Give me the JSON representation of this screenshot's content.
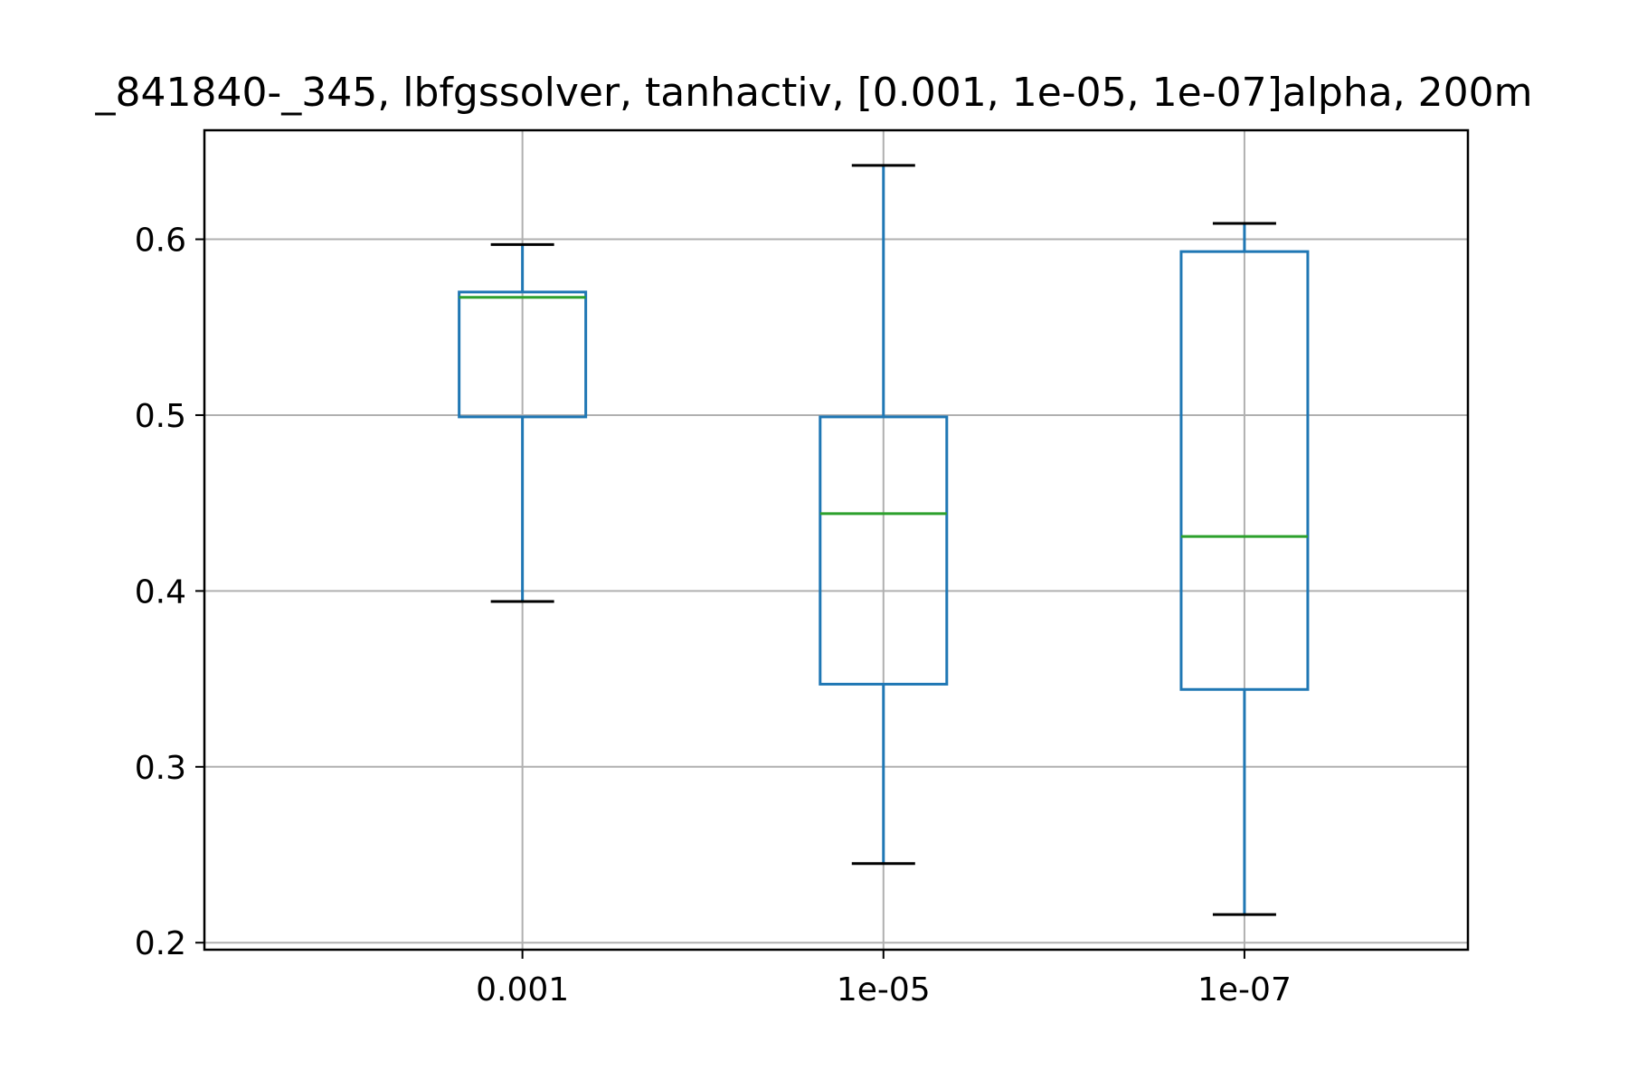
{
  "chart_data": {
    "type": "box",
    "title": "_841840-_345, lbfgssolver, tanhactiv, [0.001, 1e-05, 1e-07]alpha, 200m",
    "xlabel": "",
    "ylabel": "",
    "categories": [
      "0.001",
      "1e-05",
      "1e-07"
    ],
    "boxes": [
      {
        "category": "0.001",
        "whisker_low": 0.394,
        "q1": 0.499,
        "median": 0.567,
        "q3": 0.57,
        "whisker_high": 0.597
      },
      {
        "category": "1e-05",
        "whisker_low": 0.245,
        "q1": 0.347,
        "median": 0.444,
        "q3": 0.499,
        "whisker_high": 0.642
      },
      {
        "category": "1e-07",
        "whisker_low": 0.216,
        "q1": 0.344,
        "median": 0.431,
        "q3": 0.593,
        "whisker_high": 0.609
      }
    ],
    "ylim": [
      0.196,
      0.662
    ],
    "yticks": [
      0.2,
      0.3,
      0.4,
      0.5,
      0.6
    ],
    "ytick_labels": [
      "0.2",
      "0.3",
      "0.4",
      "0.5",
      "0.6"
    ],
    "grid": true,
    "colors": {
      "box": "#1f77b4",
      "whisker": "#1f77b4",
      "cap": "#000000",
      "median": "#2ca02c",
      "grid": "#b0b0b0",
      "axes": "#000000"
    }
  }
}
